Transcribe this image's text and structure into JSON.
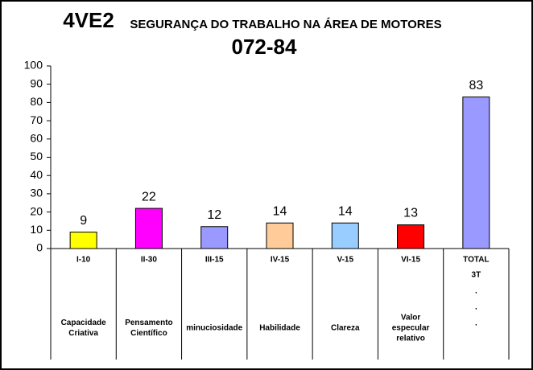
{
  "chart_data": {
    "type": "bar",
    "title": "4VE2",
    "subtitle": "SEGURANÇA DO TRABALHO NA ÁREA DE MOTORES",
    "code": "072-84",
    "categories": [
      "I-10",
      "II-30",
      "III-15",
      "IV-15",
      "V-15",
      "VI-15",
      "TOTAL"
    ],
    "descriptions": [
      [
        "Capacidade",
        "Criativa"
      ],
      [
        "Pensamento",
        "Científico"
      ],
      [
        "minuciosidade"
      ],
      [
        "Habilidade"
      ],
      [
        "Clareza"
      ],
      [
        "Valor",
        "especular",
        "relativo"
      ],
      [
        "3T",
        ".",
        ".",
        "."
      ]
    ],
    "values": [
      9,
      22,
      12,
      14,
      14,
      13,
      83
    ],
    "colors": [
      "#ffff00",
      "#ff00ff",
      "#9999ff",
      "#ffcc99",
      "#99ccff",
      "#ff0000",
      "#9999ff"
    ],
    "ylim": [
      0,
      100
    ],
    "yticks": [
      0,
      10,
      20,
      30,
      40,
      50,
      60,
      70,
      80,
      90,
      100
    ],
    "grid": false
  }
}
